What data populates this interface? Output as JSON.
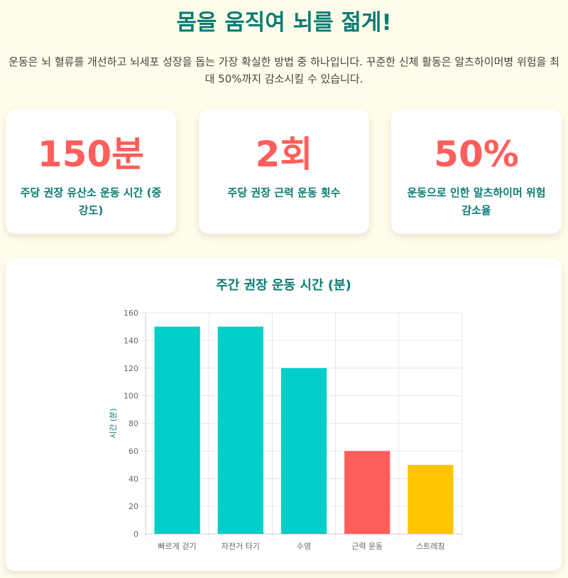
{
  "header": {
    "title": "몸을 움직여 뇌를 젊게!",
    "intro": "운동은 뇌 혈류를 개선하고 뇌세포 성장을 돕는 가장 확실한 방법 중 하나입니다. 꾸준한 신체 활동은 알츠하이머병 위험을 최대 50%까지 감소시킬 수 있습니다."
  },
  "stats": [
    {
      "value": "150분",
      "label": "주당 권장 유산소 운동 시간 (중강도)"
    },
    {
      "value": "2회",
      "label": "주당 권장 근력 운동 횟수"
    },
    {
      "value": "50%",
      "label": "운동으로 인한 알츠하이머 위험 감소율"
    }
  ],
  "colors": {
    "accent": "#0b7b74",
    "highlight": "#ff5e5b",
    "bar_teal": "#00cec9",
    "bar_red": "#ff5e5b",
    "bar_yellow": "#ffc400",
    "background": "#fffde9"
  },
  "chart_data": {
    "type": "bar",
    "title": "주간 권장 운동 시간 (분)",
    "ylabel": "시간 (분)",
    "xlabel": "",
    "categories": [
      "빠르게 걷기",
      "자전거 타기",
      "수영",
      "근력 운동",
      "스트레칭"
    ],
    "values": [
      150,
      150,
      120,
      60,
      50
    ],
    "bar_colors": [
      "#00cec9",
      "#00cec9",
      "#00cec9",
      "#ff5e5b",
      "#ffc400"
    ],
    "ylim": [
      0,
      160
    ],
    "yticks": [
      0,
      20,
      40,
      60,
      80,
      100,
      120,
      140,
      160
    ],
    "grid": true,
    "legend": "none"
  }
}
